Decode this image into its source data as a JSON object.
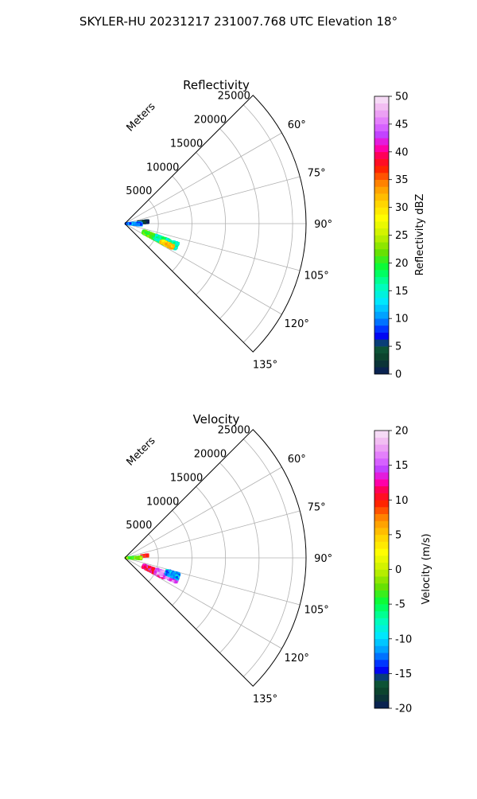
{
  "figure": {
    "title": "SKYLER-HU  20231217  231007.768 UTC Elevation 18°"
  },
  "chart_data": [
    {
      "type": "polar-sector",
      "title": "Reflectivity",
      "range_label": "Meters",
      "range_ticks": [
        5000,
        10000,
        15000,
        20000,
        25000
      ],
      "range_max": 27000,
      "azimuth_ticks": [
        "60°",
        "75°",
        "90°",
        "105°",
        "120°",
        "135°"
      ],
      "azimuth_range": [
        45,
        135
      ],
      "colorbar": {
        "label": "Reflectivity dBZ",
        "ticks": [
          "0",
          "5",
          "10",
          "15",
          "20",
          "25",
          "30",
          "35",
          "40",
          "45",
          "50"
        ],
        "min": 0,
        "max": 50
      },
      "echo_regions": [
        {
          "azimuth": [
            82,
            88
          ],
          "range": [
            2000,
            3500
          ],
          "value": 2
        },
        {
          "azimuth": [
            86,
            96
          ],
          "range": [
            200,
            2500
          ],
          "value": 10
        },
        {
          "azimuth": [
            110,
            118
          ],
          "range": [
            3000,
            7500
          ],
          "value": 21
        },
        {
          "azimuth": [
            110,
            117
          ],
          "range": [
            5000,
            8500
          ],
          "value": 16
        },
        {
          "azimuth": [
            114,
            118
          ],
          "range": [
            6000,
            8000
          ],
          "value": 31
        }
      ]
    },
    {
      "type": "polar-sector",
      "title": "Velocity",
      "range_label": "Meters",
      "range_ticks": [
        5000,
        10000,
        15000,
        20000,
        25000
      ],
      "range_max": 27000,
      "azimuth_ticks": [
        "60°",
        "75°",
        "90°",
        "105°",
        "120°",
        "135°"
      ],
      "azimuth_range": [
        45,
        135
      ],
      "colorbar": {
        "label": "Velocity (m/s)",
        "ticks": [
          "-20",
          "-15",
          "-10",
          "-5",
          "0",
          "5",
          "10",
          "15",
          "20"
        ],
        "min": -20,
        "max": 20
      },
      "echo_regions": [
        {
          "azimuth": [
            82,
            86
          ],
          "range": [
            2500,
            3500
          ],
          "value": 11
        },
        {
          "azimuth": [
            86,
            94
          ],
          "range": [
            200,
            2500
          ],
          "value": -3
        },
        {
          "azimuth": [
            110,
            118
          ],
          "range": [
            3000,
            6500
          ],
          "value": 12
        },
        {
          "azimuth": [
            109,
            116
          ],
          "range": [
            5000,
            8500
          ],
          "value": 16
        },
        {
          "azimuth": [
            106,
            112
          ],
          "range": [
            6500,
            8500
          ],
          "value": -11
        }
      ]
    }
  ]
}
